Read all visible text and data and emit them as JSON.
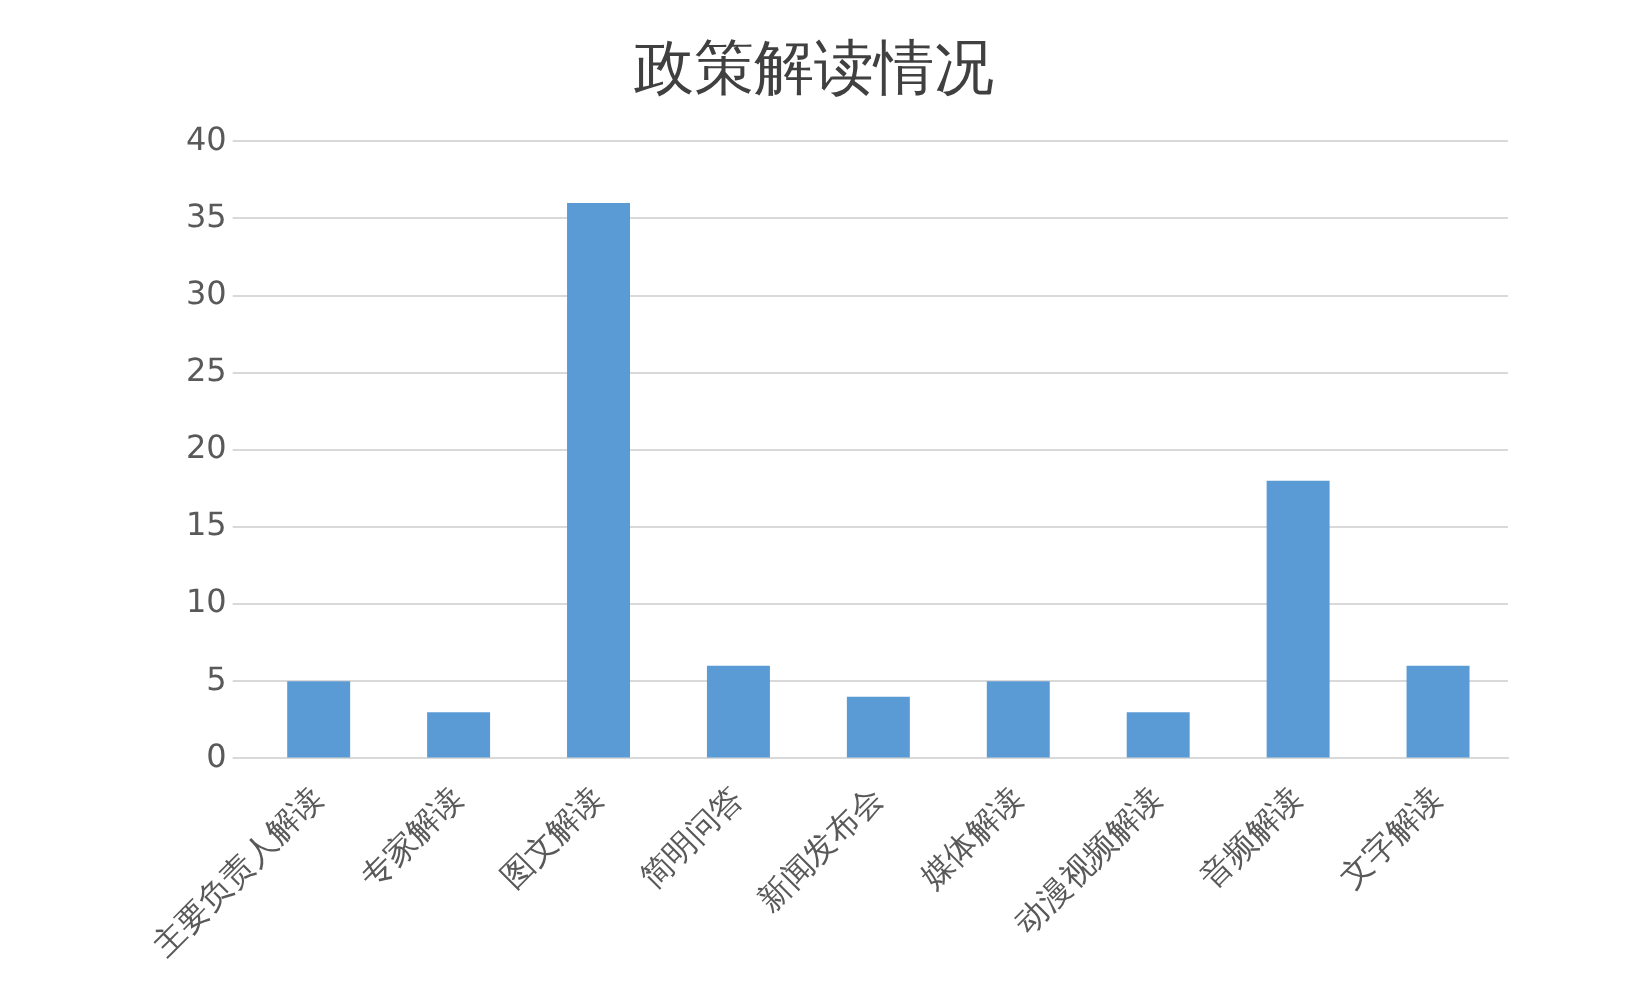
{
  "chart_data": {
    "type": "bar",
    "title": "政策解读情况",
    "categories": [
      "主要负责人解读",
      "专家解读",
      "图文解读",
      "简明问答",
      "新闻发布会",
      "媒体解读",
      "动漫视频解读",
      "音频解读",
      "文字解读"
    ],
    "values": [
      5,
      3,
      36,
      6,
      4,
      5,
      3,
      18,
      6
    ],
    "color": "#5b9bd5",
    "ylim": [
      0,
      40
    ],
    "yticks": [
      0,
      5,
      10,
      15,
      20,
      25,
      30,
      35,
      40
    ],
    "grid": "y"
  }
}
